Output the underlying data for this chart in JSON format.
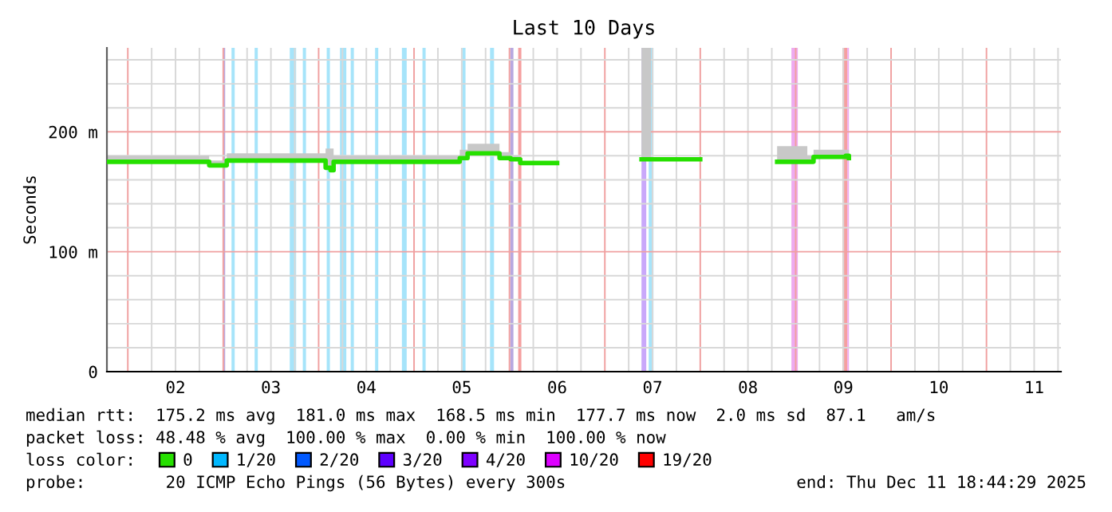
{
  "chart_data": {
    "type": "step",
    "title": "Last 10 Days",
    "ylabel": "Seconds",
    "legend_title": "loss color:",
    "xlim": [
      "2025-12-01T18:44",
      "2025-12-11T18:44"
    ],
    "xticks": [
      {
        "value": "2025-12-02T00:00",
        "label": null
      },
      {
        "value": "2025-12-02T06:00",
        "label": null
      },
      {
        "value": "2025-12-02T12:00",
        "label": "02"
      },
      {
        "value": "2025-12-02T18:00",
        "label": null
      },
      {
        "value": "2025-12-03T00:00",
        "label": null
      },
      {
        "value": "2025-12-03T06:00",
        "label": null
      },
      {
        "value": "2025-12-03T12:00",
        "label": "03"
      },
      {
        "value": "2025-12-03T18:00",
        "label": null
      },
      {
        "value": "2025-12-04T00:00",
        "label": null
      },
      {
        "value": "2025-12-04T06:00",
        "label": null
      },
      {
        "value": "2025-12-04T12:00",
        "label": "04"
      },
      {
        "value": "2025-12-04T18:00",
        "label": null
      },
      {
        "value": "2025-12-05T00:00",
        "label": null
      },
      {
        "value": "2025-12-05T06:00",
        "label": null
      },
      {
        "value": "2025-12-05T12:00",
        "label": "05"
      },
      {
        "value": "2025-12-05T18:00",
        "label": null
      },
      {
        "value": "2025-12-06T00:00",
        "label": null
      },
      {
        "value": "2025-12-06T06:00",
        "label": null
      },
      {
        "value": "2025-12-06T12:00",
        "label": "06"
      },
      {
        "value": "2025-12-06T18:00",
        "label": null
      },
      {
        "value": "2025-12-07T00:00",
        "label": null
      },
      {
        "value": "2025-12-07T06:00",
        "label": null
      },
      {
        "value": "2025-12-07T12:00",
        "label": "07"
      },
      {
        "value": "2025-12-07T18:00",
        "label": null
      },
      {
        "value": "2025-12-08T00:00",
        "label": null
      },
      {
        "value": "2025-12-08T06:00",
        "label": null
      },
      {
        "value": "2025-12-08T12:00",
        "label": "08"
      },
      {
        "value": "2025-12-08T18:00",
        "label": null
      },
      {
        "value": "2025-12-09T00:00",
        "label": null
      },
      {
        "value": "2025-12-09T06:00",
        "label": null
      },
      {
        "value": "2025-12-09T12:00",
        "label": "09"
      },
      {
        "value": "2025-12-09T18:00",
        "label": null
      },
      {
        "value": "2025-12-10T00:00",
        "label": null
      },
      {
        "value": "2025-12-10T06:00",
        "label": null
      },
      {
        "value": "2025-12-10T12:00",
        "label": "10"
      },
      {
        "value": "2025-12-10T18:00",
        "label": null
      },
      {
        "value": "2025-12-11T00:00",
        "label": null
      },
      {
        "value": "2025-12-11T06:00",
        "label": null
      },
      {
        "value": "2025-12-11T12:00",
        "label": "11"
      },
      {
        "value": "2025-12-11T18:00",
        "label": null
      }
    ],
    "ylim": [
      0,
      270
    ],
    "yticks": [
      {
        "value": 0,
        "label": "0"
      },
      {
        "value": 20,
        "label": null
      },
      {
        "value": 40,
        "label": null
      },
      {
        "value": 60,
        "label": null
      },
      {
        "value": 80,
        "label": null
      },
      {
        "value": 100,
        "label": "100 m"
      },
      {
        "value": 120,
        "label": null
      },
      {
        "value": 140,
        "label": null
      },
      {
        "value": 160,
        "label": null
      },
      {
        "value": 180,
        "label": null
      },
      {
        "value": 200,
        "label": "200 m"
      },
      {
        "value": 220,
        "label": null
      },
      {
        "value": 240,
        "label": null
      },
      {
        "value": 260,
        "label": null
      }
    ],
    "grid": true,
    "legend": "bottom",
    "series": [
      {
        "name": "0",
        "color": "#26e000",
        "x": [
          "2025-12-01T18:44",
          "2025-12-02T20:04",
          "2025-12-02T20:28",
          "2025-12-03T00:05",
          "2025-12-03T00:53",
          "2025-12-04T00:09",
          "2025-12-04T01:45",
          "2025-12-04T03:00",
          "2025-12-04T03:46",
          "2025-12-05T09:30",
          "2025-12-05T11:30",
          "2025-12-05T13:28",
          "2025-12-05T20:18",
          "2025-12-05T21:30",
          "2025-12-06T00:18",
          "2025-12-06T02:43",
          "2025-12-06T12:00",
          "2025-12-07T09:13",
          "2025-12-07T11:36",
          "2025-12-08T00:00",
          "2025-12-08T19:20",
          "2025-12-09T02:56",
          "2025-12-09T04:30",
          "2025-12-09T12:36",
          "2025-12-09T13:24"
        ],
        "values": [
          175,
          175,
          172,
          172,
          176,
          176,
          170,
          168,
          175,
          175,
          178,
          182,
          182,
          178,
          177,
          174,
          null,
          177,
          177,
          null,
          175,
          175,
          179,
          180,
          178
        ],
        "lower": [
          175,
          175,
          172,
          172,
          176,
          176,
          170,
          168,
          175,
          175,
          178,
          182,
          182,
          178,
          177,
          174,
          null,
          177,
          177,
          null,
          175,
          175,
          179,
          180,
          178
        ],
        "upper": [
          180,
          180,
          176,
          176,
          182,
          182,
          186,
          186,
          180,
          180,
          185,
          190,
          190,
          183,
          180,
          176,
          null,
          270,
          270,
          null,
          188,
          180,
          185,
          185,
          185
        ]
      },
      {
        "name": "1/20",
        "color": "#00b8ff"
      },
      {
        "name": "2/20",
        "color": "#0059ff"
      },
      {
        "name": "3/20",
        "color": "#5e00ff"
      },
      {
        "name": "4/20",
        "color": "#7e00ff"
      },
      {
        "name": "10/20",
        "color": "#dd00ff"
      },
      {
        "name": "19/20",
        "color": "#ff0000"
      }
    ],
    "bands": [
      {
        "axis": "x",
        "from": "2025-12-03T00:05",
        "to": "2025-12-03T00:29",
        "color": "#b8a8e0"
      },
      {
        "axis": "x",
        "from": "2025-12-03T02:05",
        "to": "2025-12-03T02:53",
        "color": "#a6e4fa"
      },
      {
        "axis": "x",
        "from": "2025-12-03T07:54",
        "to": "2025-12-03T08:42",
        "color": "#a6e4fa"
      },
      {
        "axis": "x",
        "from": "2025-12-03T16:44",
        "to": "2025-12-03T18:20",
        "color": "#a6e4fa"
      },
      {
        "axis": "x",
        "from": "2025-12-03T20:01",
        "to": "2025-12-03T20:49",
        "color": "#a6e4fa"
      },
      {
        "axis": "x",
        "from": "2025-12-04T02:02",
        "to": "2025-12-04T02:50",
        "color": "#a6e4fa"
      },
      {
        "axis": "x",
        "from": "2025-12-04T05:22",
        "to": "2025-12-04T06:58",
        "color": "#a6e4fa"
      },
      {
        "axis": "x",
        "from": "2025-12-04T08:04",
        "to": "2025-12-04T08:52",
        "color": "#a6e4fa"
      },
      {
        "axis": "x",
        "from": "2025-12-04T14:12",
        "to": "2025-12-04T15:00",
        "color": "#a6e4fa"
      },
      {
        "axis": "x",
        "from": "2025-12-04T20:57",
        "to": "2025-12-04T22:09",
        "color": "#a6e4fa"
      },
      {
        "axis": "x",
        "from": "2025-12-05T02:07",
        "to": "2025-12-05T02:55",
        "color": "#a6e4fa"
      },
      {
        "axis": "x",
        "from": "2025-12-05T12:09",
        "to": "2025-12-05T12:57",
        "color": "#a6e4fa"
      },
      {
        "axis": "x",
        "from": "2025-12-05T19:07",
        "to": "2025-12-05T20:07",
        "color": "#a6e4fa"
      },
      {
        "axis": "x",
        "from": "2025-12-06T00:12",
        "to": "2025-12-06T01:00",
        "color": "#b8a8e0"
      },
      {
        "axis": "x",
        "from": "2025-12-06T02:12",
        "to": "2025-12-06T03:00",
        "color": "#f5a0a0"
      },
      {
        "axis": "x",
        "from": "2025-12-07T09:13",
        "to": "2025-12-07T10:25",
        "color": "#c9a8fa"
      },
      {
        "axis": "x",
        "from": "2025-12-07T11:02",
        "to": "2025-12-07T12:14",
        "color": "#a6e4fa"
      },
      {
        "axis": "x",
        "from": "2025-12-08T22:56",
        "to": "2025-12-09T00:32",
        "color": "#eeaaf0"
      },
      {
        "axis": "x",
        "from": "2025-12-09T11:48",
        "to": "2025-12-09T13:00",
        "color": "#f5a0a0"
      },
      {
        "axis": "x",
        "from": "2025-12-09T13:00",
        "to": "2025-12-09T13:24",
        "color": "#eeaaf0"
      }
    ],
    "annotations": [
      "median rtt:  175.2 ms avg  181.0 ms max  168.5 ms min  177.7 ms now  2.0 ms sd  87.1   am/s",
      "packet loss: 48.48 % avg  100.00 % max  0.00 % min  100.00 % now",
      "probe:        20 ICMP Echo Pings (56 Bytes) every 300s",
      "end: Thu Dec 11 18:44:29 2025"
    ]
  }
}
